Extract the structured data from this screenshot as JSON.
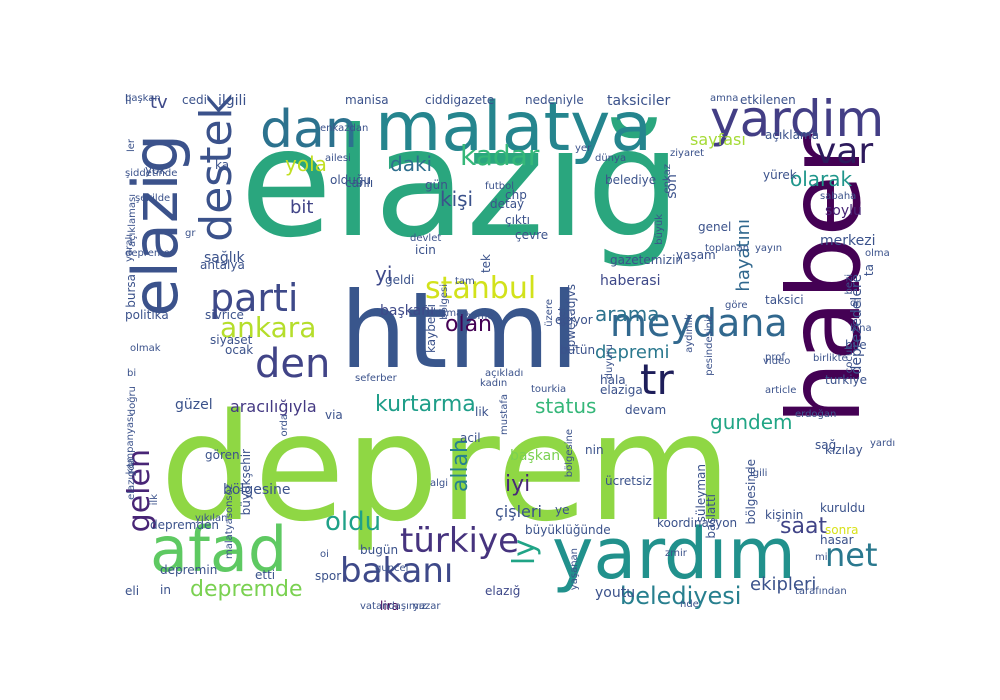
{
  "title": "",
  "palette": {
    "purple": "#482878",
    "indigo": "#3e4989",
    "blue": "#31688e",
    "teal": "#26828e",
    "green": "#1f9e89",
    "sea": "#35b779",
    "lime": "#6ece58",
    "yellowgreen": "#b5de2b",
    "yellow": "#fde725"
  },
  "words": [
    {
      "text": "deprem",
      "size": 148,
      "color": "#8fd744"
    },
    {
      "text": "elazığ",
      "size": 150,
      "color": "#2aa67e"
    },
    {
      "text": "html",
      "size": 105,
      "color": "#39568c"
    },
    {
      "text": "haber",
      "size": 100,
      "color": "#440154"
    },
    {
      "text": "yardım",
      "size": 70,
      "color": "#21918c"
    },
    {
      "text": "malatya",
      "size": 68,
      "color": "#25858e"
    },
    {
      "text": "afad",
      "size": 62,
      "color": "#5ec962"
    },
    {
      "text": "elazig",
      "size": 62,
      "color": "#3b528b"
    },
    {
      "text": "dan",
      "size": 52,
      "color": "#2c728e"
    },
    {
      "text": "yardim",
      "size": 50,
      "color": "#433e85"
    },
    {
      "text": "destek",
      "size": 44,
      "color": "#3b528b"
    },
    {
      "text": "parti",
      "size": 38,
      "color": "#3e4989"
    },
    {
      "text": "meydana",
      "size": 38,
      "color": "#31688e"
    },
    {
      "text": "tr",
      "size": 42,
      "color": "#1e1e5a"
    },
    {
      "text": "var",
      "size": 36,
      "color": "#2d1a5c"
    },
    {
      "text": "den",
      "size": 40,
      "color": "#414487"
    },
    {
      "text": "bakanı",
      "size": 34,
      "color": "#3e4989"
    },
    {
      "text": "türkiye",
      "size": 34,
      "color": "#46337e"
    },
    {
      "text": "net",
      "size": 32,
      "color": "#2a788e"
    },
    {
      "text": "stanbul",
      "size": 30,
      "color": "#d2e21b"
    },
    {
      "text": "ankara",
      "size": 28,
      "color": "#b5de2b"
    },
    {
      "text": "kadar",
      "size": 28,
      "color": "#35b779"
    },
    {
      "text": "gelen",
      "size": 30,
      "color": "#482576"
    },
    {
      "text": "ly",
      "size": 30,
      "color": "#20a486"
    },
    {
      "text": "oldu",
      "size": 26,
      "color": "#1fa188"
    },
    {
      "text": "belediyesi",
      "size": 24,
      "color": "#277f8e"
    },
    {
      "text": "depremde",
      "size": 22,
      "color": "#7ad151"
    },
    {
      "text": "kurtarma",
      "size": 22,
      "color": "#1f9e89"
    },
    {
      "text": "olarak",
      "size": 20,
      "color": "#1f968b"
    },
    {
      "text": "daki",
      "size": 20,
      "color": "#2e6e8e"
    },
    {
      "text": "yola",
      "size": 20,
      "color": "#c2df23"
    },
    {
      "text": "kişi",
      "size": 20,
      "color": "#3b528b"
    },
    {
      "text": "arama",
      "size": 20,
      "color": "#2c728e"
    },
    {
      "text": "olan",
      "size": 22,
      "color": "#440154"
    },
    {
      "text": "iyi",
      "size": 22,
      "color": "#482878"
    },
    {
      "text": "allah",
      "size": 22,
      "color": "#26818e"
    },
    {
      "text": "saat",
      "size": 22,
      "color": "#414487"
    },
    {
      "text": "status",
      "size": 20,
      "color": "#35b779"
    },
    {
      "text": "gundem",
      "size": 20,
      "color": "#21a585"
    },
    {
      "text": "depremi",
      "size": 18,
      "color": "#2a788e"
    },
    {
      "text": "hayatını",
      "size": 18,
      "color": "#31688e"
    },
    {
      "text": "ekipleri",
      "size": 18,
      "color": "#3b528b"
    },
    {
      "text": "sayfası",
      "size": 16,
      "color": "#a5db36"
    },
    {
      "text": "yi",
      "size": 20,
      "color": "#3e4989"
    },
    {
      "text": "bit",
      "size": 18,
      "color": "#414487"
    },
    {
      "text": "tv",
      "size": 18,
      "color": "#3e4989"
    },
    {
      "text": "aracılığıyla",
      "size": 16,
      "color": "#443983"
    },
    {
      "text": "çişleri",
      "size": 16,
      "color": "#3b528b"
    },
    {
      "text": "son",
      "size": 14,
      "color": "#3b528b"
    },
    {
      "text": "soylu",
      "size": 14,
      "color": "#482576"
    },
    {
      "text": "youtu",
      "size": 14,
      "color": "#3b528b"
    },
    {
      "text": "elazığ",
      "size": 12,
      "color": "#3e4989"
    },
    {
      "text": "lira",
      "size": 12,
      "color": "#440154"
    },
    {
      "text": "sonra",
      "size": 12,
      "color": "#d8e219"
    },
    {
      "text": "haberasi",
      "size": 14,
      "color": "#3e4989"
    },
    {
      "text": "başkanı",
      "size": 14,
      "color": "#3e4989"
    },
    {
      "text": "başkan",
      "size": 14,
      "color": "#7ad151"
    },
    {
      "text": "güzel",
      "size": 14,
      "color": "#3b528b"
    },
    {
      "text": "sağlık",
      "size": 14,
      "color": "#3b528b"
    },
    {
      "text": "bölgesine",
      "size": 14,
      "color": "#3b528b"
    },
    {
      "text": "depremden",
      "size": 12,
      "color": "#3b528b"
    },
    {
      "text": "büyükşehir",
      "size": 12,
      "color": "#3b528b"
    },
    {
      "text": "ilgili",
      "size": 14,
      "color": "#3b528b"
    },
    {
      "text": "cedi",
      "size": 12,
      "color": "#3b528b"
    },
    {
      "text": "manisa",
      "size": 12,
      "color": "#3b528b"
    },
    {
      "text": "ciddigazete",
      "size": 12,
      "color": "#3b528b"
    },
    {
      "text": "nedeniyle",
      "size": 12,
      "color": "#3b528b"
    },
    {
      "text": "taksiciler",
      "size": 14,
      "color": "#3b528b"
    },
    {
      "text": "amna",
      "size": 10,
      "color": "#3b528b"
    },
    {
      "text": "etkilenen",
      "size": 12,
      "color": "#3b528b"
    },
    {
      "text": "açıklama",
      "size": 12,
      "color": "#3b528b"
    },
    {
      "text": "yürek",
      "size": 12,
      "color": "#3b528b"
    },
    {
      "text": "sabaha",
      "size": 10,
      "color": "#3b528b"
    },
    {
      "text": "merkezi",
      "size": 14,
      "color": "#3b528b"
    },
    {
      "text": "deprezedelere",
      "size": 14,
      "color": "#3b528b"
    },
    {
      "text": "cumhurbaşkanı",
      "size": 14,
      "color": "#3b528b"
    },
    {
      "text": "kızılay",
      "size": 12,
      "color": "#3b528b"
    },
    {
      "text": "kuruldu",
      "size": 12,
      "color": "#3b528b"
    },
    {
      "text": "hasar",
      "size": 12,
      "color": "#3b528b"
    },
    {
      "text": "tarafından",
      "size": 10,
      "color": "#3b528b"
    },
    {
      "text": "bile",
      "size": 12,
      "color": "#3b528b"
    },
    {
      "text": "turkiye",
      "size": 12,
      "color": "#3b528b"
    },
    {
      "text": "taksici",
      "size": 12,
      "color": "#3b528b"
    },
    {
      "text": "bölgesinde",
      "size": 12,
      "color": "#3b528b"
    },
    {
      "text": "kişinin",
      "size": 12,
      "color": "#3b528b"
    },
    {
      "text": "başlattı",
      "size": 12,
      "color": "#3b528b"
    },
    {
      "text": "süleyman",
      "size": 12,
      "color": "#3b528b"
    },
    {
      "text": "koordinasyon",
      "size": 12,
      "color": "#3b528b"
    },
    {
      "text": "yayın",
      "size": 10,
      "color": "#3b528b"
    },
    {
      "text": "yaşam",
      "size": 12,
      "color": "#3b528b"
    },
    {
      "text": "genel",
      "size": 12,
      "color": "#3b528b"
    },
    {
      "text": "toplanan",
      "size": 10,
      "color": "#3b528b"
    },
    {
      "text": "gazetemizin",
      "size": 12,
      "color": "#3b528b"
    },
    {
      "text": "belediye",
      "size": 12,
      "color": "#3b528b"
    },
    {
      "text": "büyük",
      "size": 10,
      "color": "#3b528b"
    },
    {
      "text": "enkaz",
      "size": 10,
      "color": "#3b528b"
    },
    {
      "text": "dünya",
      "size": 10,
      "color": "#3b528b"
    },
    {
      "text": "ziyaret",
      "size": 10,
      "color": "#3b528b"
    },
    {
      "text": "yer",
      "size": 10,
      "color": "#3b528b"
    },
    {
      "text": "çevre",
      "size": 12,
      "color": "#3b528b"
    },
    {
      "text": "çıktı",
      "size": 12,
      "color": "#3b528b"
    },
    {
      "text": "chp",
      "size": 12,
      "color": "#3b528b"
    },
    {
      "text": "tek",
      "size": 12,
      "color": "#3b528b"
    },
    {
      "text": "fpwexadjvs",
      "size": 12,
      "color": "#3b528b"
    },
    {
      "text": "ediyor",
      "size": 12,
      "color": "#3b528b"
    },
    {
      "text": "bütün",
      "size": 12,
      "color": "#3b528b"
    },
    {
      "text": "hala",
      "size": 12,
      "color": "#3b528b"
    },
    {
      "text": "elaziga",
      "size": 12,
      "color": "#3b528b"
    },
    {
      "text": "devam",
      "size": 12,
      "color": "#3b528b"
    },
    {
      "text": "lik",
      "size": 12,
      "color": "#3b528b"
    },
    {
      "text": "acil",
      "size": 12,
      "color": "#3b528b"
    },
    {
      "text": "nin",
      "size": 12,
      "color": "#3b528b"
    },
    {
      "text": "ücretsiz",
      "size": 12,
      "color": "#3b528b"
    },
    {
      "text": "ye",
      "size": 12,
      "color": "#3b528b"
    },
    {
      "text": "büyüklüğünde",
      "size": 12,
      "color": "#3b528b"
    },
    {
      "text": "bugün",
      "size": 12,
      "color": "#3b528b"
    },
    {
      "text": "etti",
      "size": 12,
      "color": "#3b528b"
    },
    {
      "text": "vatandaşımız",
      "size": 10,
      "color": "#3b528b"
    },
    {
      "text": "yazar",
      "size": 10,
      "color": "#3b528b"
    },
    {
      "text": "in",
      "size": 12,
      "color": "#3b528b"
    },
    {
      "text": "eli",
      "size": 12,
      "color": "#3b528b"
    },
    {
      "text": "spor",
      "size": 12,
      "color": "#3b528b"
    },
    {
      "text": "oi",
      "size": 10,
      "color": "#3b528b"
    },
    {
      "text": "guncel",
      "size": 10,
      "color": "#3b528b"
    },
    {
      "text": "nde",
      "size": 10,
      "color": "#3b528b"
    },
    {
      "text": "zmir",
      "size": 10,
      "color": "#3b528b"
    },
    {
      "text": "yaşanan",
      "size": 10,
      "color": "#3b528b"
    },
    {
      "text": "mi",
      "size": 10,
      "color": "#3b528b"
    },
    {
      "text": "sağ",
      "size": 12,
      "color": "#3b528b"
    },
    {
      "text": "yardımları",
      "size": 10,
      "color": "#3b528b"
    },
    {
      "text": "erdoğan",
      "size": 10,
      "color": "#3b528b"
    },
    {
      "text": "article",
      "size": 10,
      "color": "#3b528b"
    },
    {
      "text": "video",
      "size": 10,
      "color": "#3b528b"
    },
    {
      "text": "birlikte",
      "size": 10,
      "color": "#3b528b"
    },
    {
      "text": "bina",
      "size": 10,
      "color": "#3b528b"
    },
    {
      "text": "dr",
      "size": 10,
      "color": "#3b528b"
    },
    {
      "text": "göre",
      "size": 10,
      "color": "#3b528b"
    },
    {
      "text": "prof",
      "size": 10,
      "color": "#3b528b"
    },
    {
      "text": "aydınlık",
      "size": 10,
      "color": "#3b528b"
    },
    {
      "text": "duyuru",
      "size": 10,
      "color": "#3b528b"
    },
    {
      "text": "afet",
      "size": 10,
      "color": "#3b528b"
    },
    {
      "text": "pesindesiniz",
      "size": 10,
      "color": "#3b528b"
    },
    {
      "text": "tourkia",
      "size": 10,
      "color": "#3b528b"
    },
    {
      "text": "mustafa",
      "size": 10,
      "color": "#3b528b"
    },
    {
      "text": "kadın",
      "size": 10,
      "color": "#3b528b"
    },
    {
      "text": "açıkladı",
      "size": 10,
      "color": "#3b528b"
    },
    {
      "text": "üzere",
      "size": 10,
      "color": "#3b528b"
    },
    {
      "text": "home",
      "size": 10,
      "color": "#3b528b"
    },
    {
      "text": "tam",
      "size": 10,
      "color": "#3b528b"
    },
    {
      "text": "osman",
      "size": 10,
      "color": "#3b528b"
    },
    {
      "text": "kaybetti",
      "size": 12,
      "color": "#3b528b"
    },
    {
      "text": "icin",
      "size": 12,
      "color": "#3b528b"
    },
    {
      "text": "geldi",
      "size": 12,
      "color": "#3b528b"
    },
    {
      "text": "olduğu",
      "size": 12,
      "color": "#3b528b"
    },
    {
      "text": "futbol",
      "size": 10,
      "color": "#3b528b"
    },
    {
      "text": "bölgesi",
      "size": 10,
      "color": "#3b528b"
    },
    {
      "text": "devlet",
      "size": 10,
      "color": "#3b528b"
    },
    {
      "text": "canlı",
      "size": 12,
      "color": "#3b528b"
    },
    {
      "text": "gün",
      "size": 12,
      "color": "#3b528b"
    },
    {
      "text": "detay",
      "size": 12,
      "color": "#3b528b"
    },
    {
      "text": "li",
      "size": 12,
      "color": "#3b528b"
    },
    {
      "text": "ka",
      "size": 12,
      "color": "#3b528b"
    },
    {
      "text": "enkazdan",
      "size": 10,
      "color": "#3b528b"
    },
    {
      "text": "ailesi",
      "size": 10,
      "color": "#3b528b"
    },
    {
      "text": "yok",
      "size": 12,
      "color": "#3b528b"
    },
    {
      "text": "bursa",
      "size": 12,
      "color": "#3b528b"
    },
    {
      "text": "ler",
      "size": 10,
      "color": "#3b528b"
    },
    {
      "text": "şiddetinde",
      "size": 10,
      "color": "#3b528b"
    },
    {
      "text": "şekilde",
      "size": 10,
      "color": "#3b528b"
    },
    {
      "text": "açıklaması",
      "size": 10,
      "color": "#3b528b"
    },
    {
      "text": "gr",
      "size": 10,
      "color": "#3b528b"
    },
    {
      "text": "depreme",
      "size": 10,
      "color": "#3b528b"
    },
    {
      "text": "antalya",
      "size": 12,
      "color": "#3b528b"
    },
    {
      "text": "politika",
      "size": 12,
      "color": "#3b528b"
    },
    {
      "text": "sivrice",
      "size": 12,
      "color": "#3b528b"
    },
    {
      "text": "siyaset",
      "size": 12,
      "color": "#3b528b"
    },
    {
      "text": "olmak",
      "size": 10,
      "color": "#3b528b"
    },
    {
      "text": "ocak",
      "size": 12,
      "color": "#3b528b"
    },
    {
      "text": "doğru",
      "size": 10,
      "color": "#3b528b"
    },
    {
      "text": "bi",
      "size": 10,
      "color": "#3b528b"
    },
    {
      "text": "seferber",
      "size": 10,
      "color": "#3b528b"
    },
    {
      "text": "via",
      "size": 12,
      "color": "#3b528b"
    },
    {
      "text": "kampanyası",
      "size": 10,
      "color": "#3b528b"
    },
    {
      "text": "orda",
      "size": 10,
      "color": "#3b528b"
    },
    {
      "text": "gören",
      "size": 12,
      "color": "#3b528b"
    },
    {
      "text": "elazıgda",
      "size": 10,
      "color": "#3b528b"
    },
    {
      "text": "algi",
      "size": 10,
      "color": "#3b528b"
    },
    {
      "text": "ilk",
      "size": 10,
      "color": "#3b528b"
    },
    {
      "text": "malatyasonsoz",
      "size": 10,
      "color": "#3b528b"
    },
    {
      "text": "yıkılan",
      "size": 10,
      "color": "#3b528b"
    },
    {
      "text": "bölgesine",
      "size": 10,
      "color": "#3b528b"
    },
    {
      "text": "lgili",
      "size": 10,
      "color": "#3b528b"
    },
    {
      "text": "ta",
      "size": 12,
      "color": "#3b528b"
    },
    {
      "text": "olma",
      "size": 10,
      "color": "#3b528b"
    },
    {
      "text": "bezi",
      "size": 10,
      "color": "#3b528b"
    },
    {
      "text": "çocuk",
      "size": 10,
      "color": "#3b528b"
    },
    {
      "text": "yaralı",
      "size": 10,
      "color": "#3b528b"
    },
    {
      "text": "depremin",
      "size": 12,
      "color": "#3b528b"
    },
    {
      "text": "başkan",
      "size": 10,
      "color": "#3b528b"
    }
  ]
}
